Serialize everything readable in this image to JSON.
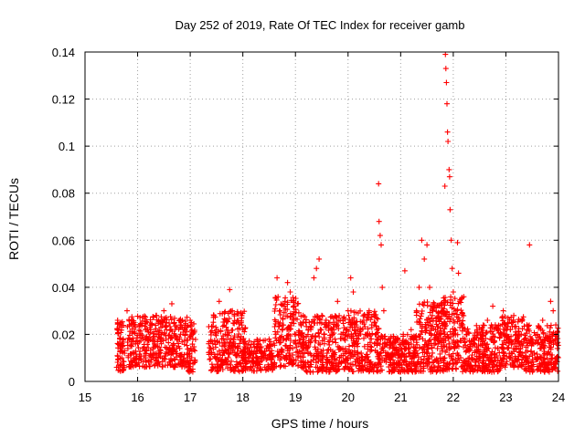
{
  "chart_data": {
    "type": "scatter",
    "title": "Day 252 of 2019, Rate Of TEC Index for receiver gamb",
    "xlabel": "GPS time / hours",
    "ylabel": "ROTI / TECUs",
    "xlim": [
      15,
      24
    ],
    "ylim": [
      0,
      0.14
    ],
    "x_ticks": [
      15,
      16,
      17,
      18,
      19,
      20,
      21,
      22,
      23,
      24
    ],
    "y_ticks": [
      0,
      0.02,
      0.04,
      0.06,
      0.08,
      0.1,
      0.12,
      0.14
    ],
    "x_tick_labels": [
      "15",
      "16",
      "17",
      "18",
      "19",
      "20",
      "21",
      "22",
      "23",
      "24"
    ],
    "y_tick_labels": [
      "0",
      "0.02",
      "0.04",
      "0.06",
      "0.08",
      "0.1",
      "0.12",
      "0.14"
    ],
    "grid": true,
    "marker": "+",
    "marker_color": "#ff0000",
    "series": [
      {
        "name": "ROTI",
        "points": [
          [
            15.62,
            0.026
          ],
          [
            15.64,
            0.022
          ],
          [
            15.66,
            0.018
          ],
          [
            15.68,
            0.014
          ],
          [
            15.7,
            0.01
          ],
          [
            15.72,
            0.006
          ],
          [
            15.75,
            0.012
          ],
          [
            15.8,
            0.03
          ],
          [
            15.85,
            0.018
          ],
          [
            15.9,
            0.012
          ],
          [
            15.95,
            0.008
          ],
          [
            16.0,
            0.016
          ],
          [
            16.05,
            0.024
          ],
          [
            16.1,
            0.014
          ],
          [
            16.15,
            0.01
          ],
          [
            16.2,
            0.018
          ],
          [
            16.25,
            0.022
          ],
          [
            16.3,
            0.012
          ],
          [
            16.35,
            0.028
          ],
          [
            16.4,
            0.02
          ],
          [
            16.45,
            0.016
          ],
          [
            16.5,
            0.03
          ],
          [
            16.55,
            0.022
          ],
          [
            16.6,
            0.012
          ],
          [
            16.65,
            0.033
          ],
          [
            16.7,
            0.025
          ],
          [
            16.75,
            0.018
          ],
          [
            16.8,
            0.014
          ],
          [
            16.85,
            0.026
          ],
          [
            16.9,
            0.02
          ],
          [
            16.95,
            0.012
          ],
          [
            17.0,
            0.026
          ],
          [
            17.05,
            0.018
          ],
          [
            17.08,
            0.008
          ],
          [
            17.35,
            0.016
          ],
          [
            17.4,
            0.012
          ],
          [
            17.45,
            0.028
          ],
          [
            17.5,
            0.022
          ],
          [
            17.55,
            0.034
          ],
          [
            17.6,
            0.018
          ],
          [
            17.65,
            0.012
          ],
          [
            17.7,
            0.026
          ],
          [
            17.75,
            0.039
          ],
          [
            17.8,
            0.03
          ],
          [
            17.85,
            0.016
          ],
          [
            17.9,
            0.012
          ],
          [
            17.95,
            0.008
          ],
          [
            18.0,
            0.022
          ],
          [
            18.05,
            0.014
          ],
          [
            18.1,
            0.01
          ],
          [
            18.15,
            0.006
          ],
          [
            18.2,
            0.012
          ],
          [
            18.25,
            0.008
          ],
          [
            18.3,
            0.016
          ],
          [
            18.35,
            0.012
          ],
          [
            18.4,
            0.01
          ],
          [
            18.45,
            0.014
          ],
          [
            18.5,
            0.018
          ],
          [
            18.55,
            0.012
          ],
          [
            18.6,
            0.008
          ],
          [
            18.65,
            0.044
          ],
          [
            18.7,
            0.03
          ],
          [
            18.75,
            0.024
          ],
          [
            18.8,
            0.034
          ],
          [
            18.85,
            0.042
          ],
          [
            18.9,
            0.038
          ],
          [
            18.95,
            0.028
          ],
          [
            19.0,
            0.02
          ],
          [
            19.05,
            0.016
          ],
          [
            19.1,
            0.012
          ],
          [
            19.15,
            0.008
          ],
          [
            19.2,
            0.014
          ],
          [
            19.25,
            0.022
          ],
          [
            19.3,
            0.018
          ],
          [
            19.35,
            0.044
          ],
          [
            19.4,
            0.048
          ],
          [
            19.45,
            0.052
          ],
          [
            19.5,
            0.028
          ],
          [
            19.55,
            0.016
          ],
          [
            19.6,
            0.012
          ],
          [
            19.65,
            0.008
          ],
          [
            19.7,
            0.022
          ],
          [
            19.75,
            0.018
          ],
          [
            19.8,
            0.034
          ],
          [
            19.85,
            0.026
          ],
          [
            19.9,
            0.02
          ],
          [
            19.95,
            0.014
          ],
          [
            20.0,
            0.03
          ],
          [
            20.05,
            0.044
          ],
          [
            20.1,
            0.038
          ],
          [
            20.15,
            0.024
          ],
          [
            20.2,
            0.018
          ],
          [
            20.25,
            0.012
          ],
          [
            20.3,
            0.026
          ],
          [
            20.35,
            0.02
          ],
          [
            20.4,
            0.03
          ],
          [
            20.45,
            0.024
          ],
          [
            20.5,
            0.016
          ],
          [
            20.55,
            0.022
          ],
          [
            20.58,
            0.084
          ],
          [
            20.59,
            0.068
          ],
          [
            20.61,
            0.062
          ],
          [
            20.63,
            0.058
          ],
          [
            20.65,
            0.04
          ],
          [
            20.68,
            0.03
          ],
          [
            20.7,
            0.018
          ],
          [
            20.75,
            0.012
          ],
          [
            20.8,
            0.008
          ],
          [
            20.85,
            0.014
          ],
          [
            20.9,
            0.018
          ],
          [
            20.95,
            0.01
          ],
          [
            21.0,
            0.014
          ],
          [
            21.05,
            0.02
          ],
          [
            21.08,
            0.047
          ],
          [
            21.1,
            0.016
          ],
          [
            21.15,
            0.012
          ],
          [
            21.2,
            0.022
          ],
          [
            21.25,
            0.018
          ],
          [
            21.3,
            0.03
          ],
          [
            21.35,
            0.04
          ],
          [
            21.4,
            0.06
          ],
          [
            21.45,
            0.052
          ],
          [
            21.5,
            0.058
          ],
          [
            21.55,
            0.04
          ],
          [
            21.6,
            0.028
          ],
          [
            21.65,
            0.018
          ],
          [
            21.7,
            0.014
          ],
          [
            21.75,
            0.01
          ],
          [
            21.8,
            0.03
          ],
          [
            21.84,
            0.083
          ],
          [
            21.85,
            0.139
          ],
          [
            21.86,
            0.133
          ],
          [
            21.87,
            0.127
          ],
          [
            21.88,
            0.118
          ],
          [
            21.89,
            0.106
          ],
          [
            21.9,
            0.102
          ],
          [
            21.92,
            0.09
          ],
          [
            21.93,
            0.087
          ],
          [
            21.94,
            0.073
          ],
          [
            21.96,
            0.06
          ],
          [
            21.98,
            0.048
          ],
          [
            22.0,
            0.038
          ],
          [
            22.05,
            0.03
          ],
          [
            22.08,
            0.059
          ],
          [
            22.1,
            0.046
          ],
          [
            22.15,
            0.024
          ],
          [
            22.2,
            0.036
          ],
          [
            22.25,
            0.02
          ],
          [
            22.3,
            0.014
          ],
          [
            22.35,
            0.01
          ],
          [
            22.4,
            0.016
          ],
          [
            22.45,
            0.022
          ],
          [
            22.5,
            0.012
          ],
          [
            22.55,
            0.008
          ],
          [
            22.6,
            0.016
          ],
          [
            22.65,
            0.026
          ],
          [
            22.7,
            0.018
          ],
          [
            22.75,
            0.032
          ],
          [
            22.8,
            0.024
          ],
          [
            22.85,
            0.014
          ],
          [
            22.9,
            0.01
          ],
          [
            22.95,
            0.03
          ],
          [
            23.0,
            0.024
          ],
          [
            23.05,
            0.018
          ],
          [
            23.1,
            0.012
          ],
          [
            23.15,
            0.028
          ],
          [
            23.2,
            0.02
          ],
          [
            23.25,
            0.014
          ],
          [
            23.3,
            0.008
          ],
          [
            23.35,
            0.018
          ],
          [
            23.4,
            0.024
          ],
          [
            23.45,
            0.058
          ],
          [
            23.5,
            0.016
          ],
          [
            23.55,
            0.01
          ],
          [
            23.6,
            0.02
          ],
          [
            23.65,
            0.014
          ],
          [
            23.7,
            0.026
          ],
          [
            23.75,
            0.018
          ],
          [
            23.8,
            0.012
          ],
          [
            23.85,
            0.034
          ],
          [
            23.9,
            0.03
          ],
          [
            23.95,
            0.024
          ],
          [
            23.98,
            0.014
          ]
        ],
        "dense_clusters": [
          {
            "x_range": [
              15.6,
              15.75
            ],
            "y_range": [
              0.004,
              0.026
            ],
            "count": 60
          },
          {
            "x_range": [
              15.8,
              16.95
            ],
            "y_range": [
              0.006,
              0.028
            ],
            "count": 380
          },
          {
            "x_range": [
              16.95,
              17.1
            ],
            "y_range": [
              0.004,
              0.026
            ],
            "count": 50
          },
          {
            "x_range": [
              17.35,
              18.05
            ],
            "y_range": [
              0.004,
              0.03
            ],
            "count": 240
          },
          {
            "x_range": [
              18.0,
              18.6
            ],
            "y_range": [
              0.004,
              0.018
            ],
            "count": 150
          },
          {
            "x_range": [
              18.6,
              19.1
            ],
            "y_range": [
              0.006,
              0.036
            ],
            "count": 170
          },
          {
            "x_range": [
              19.1,
              20.0
            ],
            "y_range": [
              0.004,
              0.028
            ],
            "count": 300
          },
          {
            "x_range": [
              20.0,
              20.6
            ],
            "y_range": [
              0.004,
              0.03
            ],
            "count": 220
          },
          {
            "x_range": [
              20.6,
              21.3
            ],
            "y_range": [
              0.004,
              0.02
            ],
            "count": 230
          },
          {
            "x_range": [
              21.3,
              21.8
            ],
            "y_range": [
              0.004,
              0.034
            ],
            "count": 200
          },
          {
            "x_range": [
              21.8,
              22.2
            ],
            "y_range": [
              0.004,
              0.036
            ],
            "count": 160
          },
          {
            "x_range": [
              22.2,
              22.9
            ],
            "y_range": [
              0.004,
              0.024
            ],
            "count": 230
          },
          {
            "x_range": [
              22.9,
              23.35
            ],
            "y_range": [
              0.006,
              0.028
            ],
            "count": 150
          },
          {
            "x_range": [
              23.35,
              24.0
            ],
            "y_range": [
              0.004,
              0.024
            ],
            "count": 220
          }
        ]
      }
    ]
  }
}
